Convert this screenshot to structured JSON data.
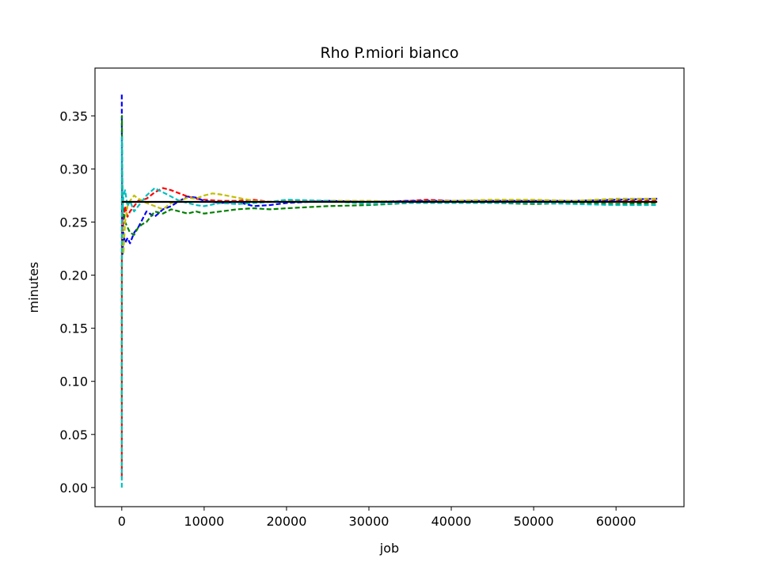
{
  "chart_data": {
    "type": "line",
    "title": "Rho P.miori bianco",
    "xlabel": "job",
    "ylabel": "minutes",
    "xlim": [
      -3250,
      68250
    ],
    "ylim": [
      -0.018,
      0.395
    ],
    "xticks": [
      0,
      10000,
      20000,
      30000,
      40000,
      50000,
      60000
    ],
    "xtick_labels": [
      "0",
      "10000",
      "20000",
      "30000",
      "40000",
      "50000",
      "60000"
    ],
    "yticks": [
      0.0,
      0.05,
      0.1,
      0.15,
      0.2,
      0.25,
      0.3,
      0.35
    ],
    "ytick_labels": [
      "0.00",
      "0.05",
      "0.10",
      "0.15",
      "0.20",
      "0.25",
      "0.30",
      "0.35"
    ],
    "grid": false,
    "reference_line": {
      "y": 0.269,
      "x": [
        0,
        65000
      ],
      "color": "#000000"
    },
    "series": [
      {
        "color": "#ff0000",
        "dash": "dashed",
        "x": [
          0,
          20,
          50,
          100,
          200,
          400,
          700,
          1000,
          1500,
          2000,
          3000,
          4000,
          5000,
          6000,
          7000,
          8000,
          9000,
          10000,
          12000,
          14000,
          16000,
          18000,
          20000,
          25000,
          30000,
          35000,
          37000,
          40000,
          45000,
          50000,
          55000,
          60000,
          65000
        ],
        "y": [
          0.01,
          0.3,
          0.27,
          0.24,
          0.25,
          0.265,
          0.255,
          0.26,
          0.265,
          0.27,
          0.272,
          0.278,
          0.282,
          0.28,
          0.277,
          0.274,
          0.272,
          0.271,
          0.27,
          0.27,
          0.271,
          0.269,
          0.27,
          0.27,
          0.269,
          0.27,
          0.271,
          0.27,
          0.27,
          0.27,
          0.269,
          0.27,
          0.27
        ]
      },
      {
        "color": "#0000ff",
        "dash": "dashed",
        "x": [
          0,
          20,
          50,
          100,
          200,
          400,
          700,
          1000,
          1500,
          2000,
          3000,
          4000,
          5000,
          6000,
          7000,
          8000,
          9000,
          10000,
          12000,
          14000,
          16000,
          18000,
          20000,
          25000,
          30000,
          35000,
          40000,
          45000,
          50000,
          55000,
          60000,
          65000
        ],
        "y": [
          0.37,
          0.3,
          0.26,
          0.22,
          0.24,
          0.23,
          0.235,
          0.23,
          0.24,
          0.245,
          0.26,
          0.255,
          0.262,
          0.265,
          0.27,
          0.274,
          0.273,
          0.27,
          0.268,
          0.269,
          0.265,
          0.266,
          0.268,
          0.27,
          0.269,
          0.27,
          0.27,
          0.27,
          0.27,
          0.27,
          0.271,
          0.272
        ]
      },
      {
        "color": "#008000",
        "dash": "dashed",
        "x": [
          0,
          20,
          50,
          100,
          200,
          400,
          700,
          1000,
          1500,
          2000,
          2500,
          3000,
          4000,
          5000,
          6000,
          7000,
          8000,
          9000,
          10000,
          12000,
          14000,
          16000,
          18000,
          20000,
          25000,
          30000,
          35000,
          40000,
          45000,
          50000,
          55000,
          60000,
          65000
        ],
        "y": [
          0.08,
          0.35,
          0.3,
          0.27,
          0.26,
          0.25,
          0.245,
          0.24,
          0.238,
          0.245,
          0.248,
          0.25,
          0.26,
          0.258,
          0.262,
          0.26,
          0.258,
          0.26,
          0.258,
          0.26,
          0.262,
          0.263,
          0.262,
          0.263,
          0.265,
          0.266,
          0.268,
          0.269,
          0.268,
          0.267,
          0.268,
          0.267,
          0.268
        ]
      },
      {
        "color": "#bfbf00",
        "dash": "dashed",
        "x": [
          0,
          20,
          50,
          100,
          200,
          400,
          700,
          1000,
          1500,
          2000,
          3000,
          4000,
          5000,
          6000,
          7000,
          8000,
          9000,
          10000,
          11000,
          12000,
          14000,
          16000,
          18000,
          20000,
          25000,
          30000,
          35000,
          40000,
          45000,
          50000,
          55000,
          60000,
          65000
        ],
        "y": [
          0.02,
          0.2,
          0.25,
          0.23,
          0.22,
          0.25,
          0.265,
          0.27,
          0.275,
          0.272,
          0.268,
          0.265,
          0.262,
          0.268,
          0.27,
          0.273,
          0.272,
          0.275,
          0.277,
          0.276,
          0.273,
          0.27,
          0.269,
          0.27,
          0.27,
          0.27,
          0.269,
          0.27,
          0.271,
          0.271,
          0.27,
          0.272,
          0.272
        ]
      },
      {
        "color": "#00bfbf",
        "dash": "dashed",
        "x": [
          0,
          20,
          50,
          100,
          200,
          400,
          700,
          1000,
          1500,
          2000,
          3000,
          4000,
          5000,
          6000,
          7000,
          8000,
          9000,
          10000,
          12000,
          14000,
          16000,
          18000,
          20000,
          25000,
          30000,
          35000,
          40000,
          45000,
          50000,
          55000,
          60000,
          65000
        ],
        "y": [
          0.0,
          0.33,
          0.28,
          0.26,
          0.275,
          0.28,
          0.265,
          0.27,
          0.26,
          0.265,
          0.275,
          0.282,
          0.278,
          0.274,
          0.27,
          0.268,
          0.266,
          0.265,
          0.268,
          0.267,
          0.268,
          0.269,
          0.271,
          0.27,
          0.267,
          0.268,
          0.268,
          0.268,
          0.268,
          0.267,
          0.266,
          0.266
        ]
      }
    ]
  }
}
